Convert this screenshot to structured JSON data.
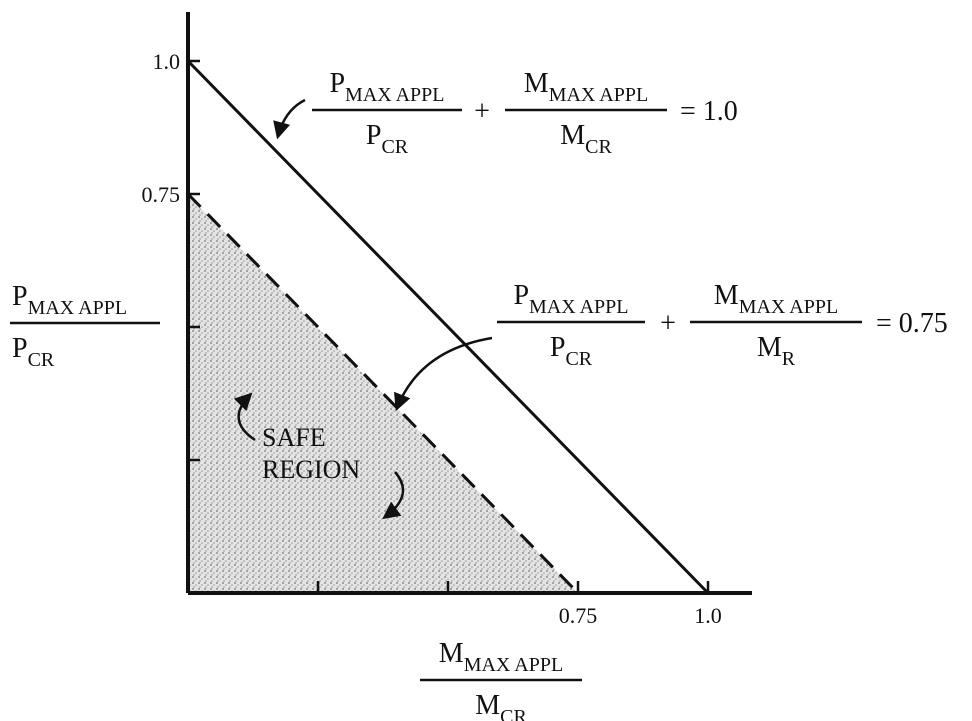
{
  "y_axis_label": {
    "numerator": {
      "base": "P",
      "sub": "MAX APPL"
    },
    "denominator": {
      "base": "P",
      "sub": "CR"
    }
  },
  "x_axis_label": {
    "numerator": {
      "base": "M",
      "sub": "MAX APPL"
    },
    "denominator": {
      "base": "M",
      "sub": "CR"
    }
  },
  "y_ticks": [
    "1.0",
    "0.75"
  ],
  "x_ticks": [
    "0.75",
    "1.0"
  ],
  "equations": [
    {
      "term1": {
        "numerator": {
          "base": "P",
          "sub": "MAX APPL"
        },
        "denominator": {
          "base": "P",
          "sub": "CR"
        }
      },
      "plus": "+",
      "term2": {
        "numerator": {
          "base": "M",
          "sub": "MAX APPL"
        },
        "denominator": {
          "base": "M",
          "sub": "CR"
        }
      },
      "rhs": "= 1.0"
    },
    {
      "term1": {
        "numerator": {
          "base": "P",
          "sub": "MAX APPL"
        },
        "denominator": {
          "base": "P",
          "sub": "CR"
        }
      },
      "plus": "+",
      "term2": {
        "numerator": {
          "base": "M",
          "sub": "MAX APPL"
        },
        "denominator": {
          "base": "M",
          "sub": "R"
        }
      },
      "rhs": "= 0.75"
    }
  ],
  "safe_region": [
    "SAFE",
    "REGION"
  ]
}
